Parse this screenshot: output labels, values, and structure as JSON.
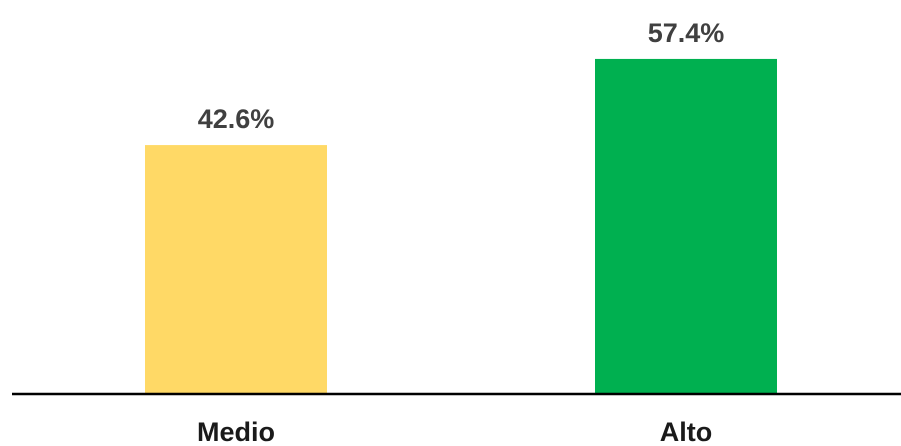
{
  "chart_data": {
    "type": "bar",
    "title": "",
    "xlabel": "",
    "ylabel": "",
    "categories": [
      "Medio",
      "Alto"
    ],
    "values": [
      42.6,
      57.4
    ],
    "value_labels": [
      "42.6%",
      "57.4%"
    ],
    "colors": [
      "#FFD966",
      "#00B050"
    ],
    "axis_color": "#000000",
    "ylim": [
      0,
      60
    ],
    "grid": false,
    "legend": "none"
  }
}
